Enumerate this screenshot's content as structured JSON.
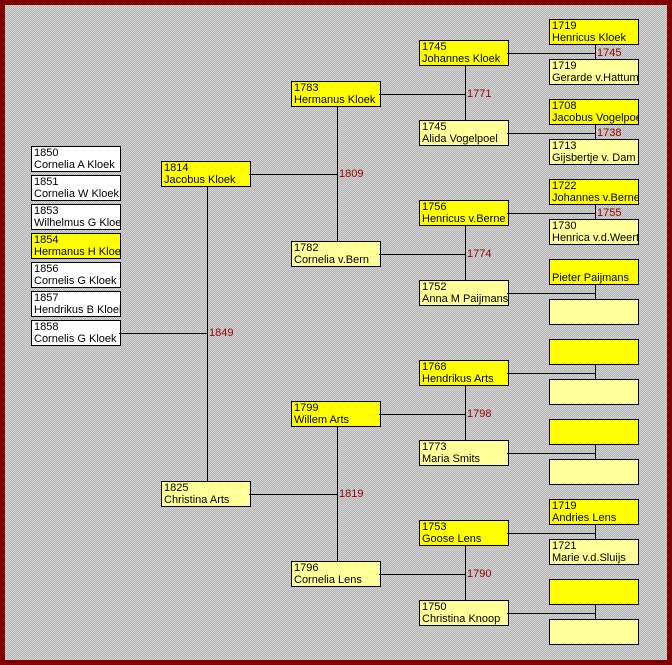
{
  "colors": {
    "frame": "#800000",
    "male": "#ffff00",
    "female": "#ffff99",
    "child": "#ffffff",
    "marriage_label": "#990000"
  },
  "children": [
    {
      "year": "1850",
      "name": "Cornelia A Kloek",
      "highlighted": false
    },
    {
      "year": "1851",
      "name": "Cornelia W Kloek",
      "highlighted": false
    },
    {
      "year": "1853",
      "name": "Wilhelmus G Kloek",
      "highlighted": false
    },
    {
      "year": "1854",
      "name": "Hermanus H Kloek",
      "highlighted": true
    },
    {
      "year": "1856",
      "name": "Cornelis G Kloek",
      "highlighted": false
    },
    {
      "year": "1857",
      "name": "Hendrikus B Kloek",
      "highlighted": false
    },
    {
      "year": "1858",
      "name": "Cornelis G Kloek",
      "highlighted": false
    }
  ],
  "ancestors": {
    "2": {
      "year": "1814",
      "name": "Jacobus Kloek"
    },
    "3": {
      "year": "1825",
      "name": "Christina Arts"
    },
    "4": {
      "year": "1783",
      "name": "Hermanus Kloek"
    },
    "5": {
      "year": "1782",
      "name": "Cornelia v.Bern"
    },
    "6": {
      "year": "1799",
      "name": "Willem Arts"
    },
    "7": {
      "year": "1796",
      "name": "Cornelia Lens"
    },
    "8": {
      "year": "1745",
      "name": "Johannes Kloek"
    },
    "9": {
      "year": "1745",
      "name": "Alida Vogelpoel"
    },
    "10": {
      "year": "1756",
      "name": "Henricus v.Berne"
    },
    "11": {
      "year": "1752",
      "name": "Anna M Paijmans"
    },
    "12": {
      "year": "1768",
      "name": "Hendrikus Arts"
    },
    "13": {
      "year": "1773",
      "name": "Maria Smits"
    },
    "14": {
      "year": "1753",
      "name": "Goose Lens"
    },
    "15": {
      "year": "1750",
      "name": "Christina Knoop"
    },
    "16": {
      "year": "1719",
      "name": "Henricus Kloek"
    },
    "17": {
      "year": "1719",
      "name": "Gerarde v.Hattum"
    },
    "18": {
      "year": "1708",
      "name": "Jacobus Vogelpoel"
    },
    "19": {
      "year": "1713",
      "name": "Gijsbertje v. Dam"
    },
    "20": {
      "year": "1722",
      "name": "Johannes v.Berne"
    },
    "21": {
      "year": "1730",
      "name": "Henrica v.d.Weert"
    },
    "22": {
      "year": "",
      "name": "Pieter Paijmans"
    },
    "23": {
      "year": "",
      "name": ""
    },
    "24": {
      "year": "",
      "name": ""
    },
    "25": {
      "year": "",
      "name": ""
    },
    "26": {
      "year": "",
      "name": ""
    },
    "27": {
      "year": "",
      "name": ""
    },
    "28": {
      "year": "1719",
      "name": "Andries Lens"
    },
    "29": {
      "year": "1721",
      "name": "Marie v.d.Sluijs"
    },
    "30": {
      "year": "",
      "name": ""
    },
    "31": {
      "year": "",
      "name": ""
    }
  },
  "marriages": {
    "1": "1849",
    "2": "1809",
    "3": "1819",
    "4": "1771",
    "5": "1774",
    "6": "1798",
    "7": "1790",
    "8": "1745",
    "9": "1738",
    "10": "1755"
  }
}
